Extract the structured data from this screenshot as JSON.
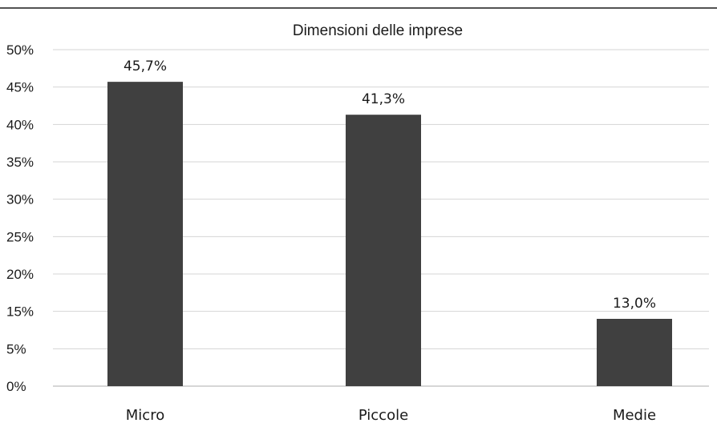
{
  "chart_data": {
    "type": "bar",
    "title": "Dimensioni delle imprese",
    "xlabel": "",
    "ylabel": "",
    "categories": [
      "Micro",
      "Piccole",
      "Medie"
    ],
    "values": [
      45.7,
      41.3,
      13.0
    ],
    "data_labels": [
      "45,7%",
      "41,3%",
      "13,0%"
    ],
    "yticks": [
      {
        "label": "50%",
        "value": 50
      },
      {
        "label": "45%",
        "value": 45
      },
      {
        "label": "40%",
        "value": 40
      },
      {
        "label": "35%",
        "value": 35
      },
      {
        "label": "30%",
        "value": 30
      },
      {
        "label": "25%",
        "value": 25
      },
      {
        "label": "20%",
        "value": 20
      },
      {
        "label": "15%",
        "value": 15
      },
      {
        "label": "5%",
        "value": 5
      },
      {
        "label": "0%",
        "value": 0
      }
    ],
    "ylim": [
      0,
      50
    ],
    "grid": true,
    "legend": "none",
    "colors": {
      "bar": "#404040",
      "grid": "#d4d4d4",
      "text": "#1a1a1a"
    }
  }
}
